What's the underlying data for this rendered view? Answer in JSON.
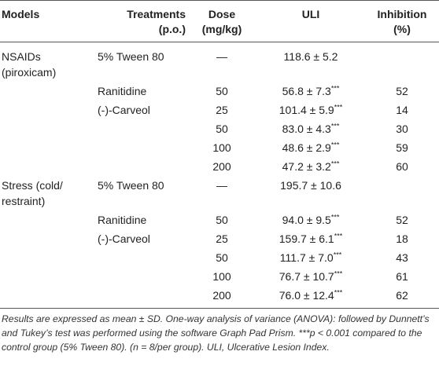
{
  "header": {
    "models": "Models",
    "treatments": [
      "Treatments",
      "(p.o.)"
    ],
    "dose": [
      "Dose",
      "(mg/kg)"
    ],
    "uli": "ULI",
    "inhibition": [
      "Inhibition",
      "(%)"
    ]
  },
  "rows": [
    {
      "model": [
        "NSAIDs",
        "(piroxicam)"
      ],
      "treatment": "5% Tween 80",
      "dose": "—",
      "uli": "118.6 ± 5.2",
      "sig": null,
      "inhibition": null
    },
    {
      "model": null,
      "treatment": "Ranitidine",
      "dose": "50",
      "uli": "56.8 ± 7.3",
      "sig": "***",
      "inhibition": "52"
    },
    {
      "model": null,
      "treatment": "(-)-Carveol",
      "dose": "25",
      "uli": "101.4 ± 5.9",
      "sig": "***",
      "inhibition": "14"
    },
    {
      "model": null,
      "treatment": null,
      "dose": "50",
      "uli": "83.0 ± 4.3",
      "sig": "***",
      "inhibition": "30"
    },
    {
      "model": null,
      "treatment": null,
      "dose": "100",
      "uli": "48.6 ± 2.9",
      "sig": "***",
      "inhibition": "59"
    },
    {
      "model": null,
      "treatment": null,
      "dose": "200",
      "uli": "47.2 ± 3.2",
      "sig": "***",
      "inhibition": "60"
    },
    {
      "model": [
        "Stress (cold/",
        "restraint)"
      ],
      "treatment": "5% Tween 80",
      "dose": "—",
      "uli": "195.7 ± 10.6",
      "sig": null,
      "inhibition": null
    },
    {
      "model": null,
      "treatment": "Ranitidine",
      "dose": "50",
      "uli": "94.0 ± 9.5",
      "sig": "***",
      "inhibition": "52"
    },
    {
      "model": null,
      "treatment": "(-)-Carveol",
      "dose": "25",
      "uli": "159.7 ± 6.1",
      "sig": "***",
      "inhibition": "18"
    },
    {
      "model": null,
      "treatment": null,
      "dose": "50",
      "uli": "111.7 ± 7.0",
      "sig": "***",
      "inhibition": "43"
    },
    {
      "model": null,
      "treatment": null,
      "dose": "100",
      "uli": "76.7 ± 10.7",
      "sig": "***",
      "inhibition": "61"
    },
    {
      "model": null,
      "treatment": null,
      "dose": "200",
      "uli": "76.0 ± 12.4",
      "sig": "***",
      "inhibition": "62"
    }
  ],
  "footnote": "Results are expressed as mean ± SD. One-way analysis of variance (ANOVA): followed by Dunnett’s and Tukey’s test was performed using the software Graph Pad Prism. ***p < 0.001 compared to the control group (5% Tween 80). (n = 8/per group). ULI, Ulcerative Lesion Index."
}
